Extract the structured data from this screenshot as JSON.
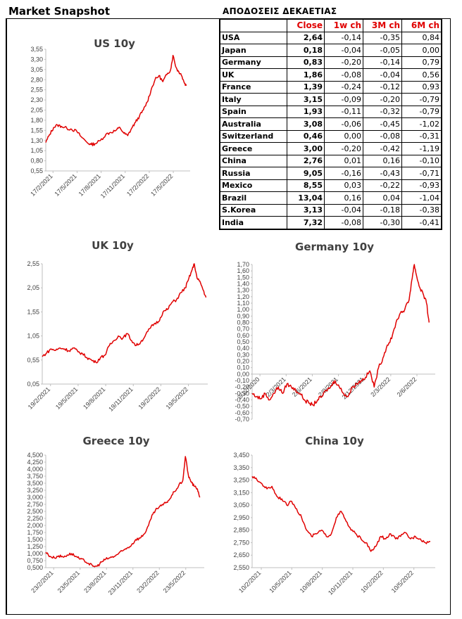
{
  "header": {
    "title": "Market Snapshot"
  },
  "table": {
    "title": "ΑΠΟΔΟΣΕΙΣ ΔΕΚΑΕΤΙΑΣ",
    "columns": [
      "",
      "Close",
      "1w ch",
      "3M ch",
      "6M ch"
    ],
    "rows": [
      [
        "USA",
        "2,64",
        "-0,14",
        "-0,35",
        "0,84"
      ],
      [
        "Japan",
        "0,18",
        "-0,04",
        "-0,05",
        "0,00"
      ],
      [
        "Germany",
        "0,83",
        "-0,20",
        "-0,14",
        "0,79"
      ],
      [
        "UK",
        "1,86",
        "-0,08",
        "-0,04",
        "0,56"
      ],
      [
        "France",
        "1,39",
        "-0,24",
        "-0,12",
        "0,93"
      ],
      [
        "Italy",
        "3,15",
        "-0,09",
        "-0,20",
        "-0,79"
      ],
      [
        "Spain",
        "1,93",
        "-0,11",
        "-0,32",
        "-0,79"
      ],
      [
        "Australia",
        "3,08",
        "-0,06",
        "-0,45",
        "-1,02"
      ],
      [
        "Switzerland",
        "0,46",
        "0,00",
        "-0,08",
        "-0,31"
      ],
      [
        "Greece",
        "3,00",
        "-0,20",
        "-0,42",
        "-1,19"
      ],
      [
        "China",
        "2,76",
        "0,01",
        "0,16",
        "-0,10"
      ],
      [
        "Russia",
        "9,05",
        "-0,16",
        "-0,43",
        "-0,71"
      ],
      [
        "Mexico",
        "8,55",
        "0,03",
        "-0,22",
        "-0,93"
      ],
      [
        "Brazil",
        "13,04",
        "0,16",
        "0,04",
        "-1,04"
      ],
      [
        "S.Korea",
        "3,13",
        "-0,04",
        "-0,18",
        "-0,38"
      ],
      [
        "India",
        "7,32",
        "-0,08",
        "-0,30",
        "-0,41"
      ]
    ]
  },
  "colors": {
    "line": "#e00000",
    "header_red": "#e00000",
    "axis": "#404040"
  },
  "chart_data": [
    {
      "id": "us",
      "type": "line",
      "title": "US 10y",
      "yticks": [
        "0,55",
        "0,80",
        "1,05",
        "1,30",
        "1,55",
        "1,80",
        "2,05",
        "2,30",
        "2,55",
        "2,80",
        "3,05",
        "3,30",
        "3,55"
      ],
      "ylim": [
        0.55,
        3.55
      ],
      "xticks": [
        "17/2/2021",
        "17/5/2021",
        "17/8/2021",
        "17/11/2021",
        "17/2/2022",
        "17/5/2022"
      ],
      "xlim_months": [
        0,
        18.5
      ],
      "points": [
        [
          0,
          1.25
        ],
        [
          0.5,
          1.45
        ],
        [
          1,
          1.62
        ],
        [
          1.5,
          1.68
        ],
        [
          2,
          1.65
        ],
        [
          2.7,
          1.6
        ],
        [
          3.3,
          1.58
        ],
        [
          4,
          1.52
        ],
        [
          4.5,
          1.4
        ],
        [
          5.3,
          1.25
        ],
        [
          5.8,
          1.2
        ],
        [
          6.3,
          1.22
        ],
        [
          7,
          1.3
        ],
        [
          7.7,
          1.45
        ],
        [
          8.3,
          1.5
        ],
        [
          9,
          1.55
        ],
        [
          9.5,
          1.62
        ],
        [
          10,
          1.48
        ],
        [
          10.5,
          1.42
        ],
        [
          11,
          1.6
        ],
        [
          11.5,
          1.75
        ],
        [
          12,
          1.9
        ],
        [
          12.5,
          2.05
        ],
        [
          13,
          2.25
        ],
        [
          13.5,
          2.55
        ],
        [
          14,
          2.8
        ],
        [
          14.5,
          2.9
        ],
        [
          15,
          2.75
        ],
        [
          15.5,
          2.92
        ],
        [
          16,
          3.05
        ],
        [
          16.3,
          3.4
        ],
        [
          16.7,
          3.1
        ],
        [
          17,
          3.0
        ],
        [
          17.3,
          2.95
        ],
        [
          17.7,
          2.75
        ],
        [
          18,
          2.65
        ]
      ]
    },
    {
      "id": "uk",
      "type": "line",
      "title": "UK 10y",
      "yticks": [
        "0,05",
        "0,55",
        "1,05",
        "1,55",
        "2,05",
        "2,55"
      ],
      "ylim": [
        0.05,
        2.55
      ],
      "xticks": [
        "19/2/2021",
        "19/5/2021",
        "19/8/2021",
        "19/11/2021",
        "19/2/2022",
        "19/5/2022"
      ],
      "xlim_months": [
        0,
        18.5
      ],
      "points": [
        [
          0,
          0.62
        ],
        [
          0.5,
          0.7
        ],
        [
          1,
          0.78
        ],
        [
          1.5,
          0.75
        ],
        [
          2,
          0.8
        ],
        [
          2.5,
          0.78
        ],
        [
          3,
          0.74
        ],
        [
          3.5,
          0.8
        ],
        [
          4,
          0.72
        ],
        [
          4.5,
          0.68
        ],
        [
          5,
          0.6
        ],
        [
          5.5,
          0.55
        ],
        [
          6,
          0.5
        ],
        [
          6.5,
          0.6
        ],
        [
          7,
          0.65
        ],
        [
          7.5,
          0.85
        ],
        [
          8,
          0.95
        ],
        [
          8.5,
          1.05
        ],
        [
          9,
          1.0
        ],
        [
          9.5,
          1.1
        ],
        [
          10,
          0.95
        ],
        [
          10.5,
          0.85
        ],
        [
          11,
          0.92
        ],
        [
          11.5,
          1.05
        ],
        [
          12,
          1.2
        ],
        [
          12.5,
          1.3
        ],
        [
          13,
          1.35
        ],
        [
          13.5,
          1.55
        ],
        [
          14,
          1.6
        ],
        [
          14.5,
          1.75
        ],
        [
          15,
          1.8
        ],
        [
          15.5,
          1.95
        ],
        [
          16,
          2.05
        ],
        [
          16.3,
          2.2
        ],
        [
          16.7,
          2.4
        ],
        [
          17,
          2.55
        ],
        [
          17.3,
          2.25
        ],
        [
          17.7,
          2.15
        ],
        [
          18,
          2.0
        ],
        [
          18.3,
          1.85
        ]
      ]
    },
    {
      "id": "germany",
      "type": "line",
      "title": "Germany 10y",
      "yticks": [
        "-0,70",
        "-0,60",
        "-0,50",
        "-0,40",
        "-0,30",
        "-0,20",
        "-0,10",
        "0,00",
        "0,10",
        "0,20",
        "0,30",
        "0,40",
        "0,50",
        "0,60",
        "0,70",
        "0,80",
        "0,90",
        "1,00",
        "1,10",
        "1,20",
        "1,30",
        "1,40",
        "1,50",
        "1,60",
        "1,70"
      ],
      "ylim": [
        -0.7,
        1.7
      ],
      "xticks": [
        "2/12/2020",
        "2/3/2021",
        "2/6/2021",
        "2/9/2021",
        "2/12/2021",
        "2/3/2022",
        "2/6/2022"
      ],
      "xlim_months": [
        0,
        21
      ],
      "points": [
        [
          0,
          -0.3
        ],
        [
          0.5,
          -0.35
        ],
        [
          1,
          -0.38
        ],
        [
          1.5,
          -0.3
        ],
        [
          2,
          -0.4
        ],
        [
          2.5,
          -0.3
        ],
        [
          3,
          -0.2
        ],
        [
          3.5,
          -0.3
        ],
        [
          4,
          -0.15
        ],
        [
          4.5,
          -0.2
        ],
        [
          5,
          -0.25
        ],
        [
          5.5,
          -0.3
        ],
        [
          6,
          -0.4
        ],
        [
          6.5,
          -0.45
        ],
        [
          7,
          -0.48
        ],
        [
          7.5,
          -0.4
        ],
        [
          8,
          -0.35
        ],
        [
          8.5,
          -0.25
        ],
        [
          9,
          -0.2
        ],
        [
          9.5,
          -0.1
        ],
        [
          10,
          -0.2
        ],
        [
          10.5,
          -0.3
        ],
        [
          11,
          -0.35
        ],
        [
          11.5,
          -0.2
        ],
        [
          12,
          -0.15
        ],
        [
          12.5,
          -0.1
        ],
        [
          13,
          -0.05
        ],
        [
          13.5,
          0.05
        ],
        [
          14,
          -0.2
        ],
        [
          14.5,
          0.1
        ],
        [
          15,
          0.25
        ],
        [
          15.5,
          0.45
        ],
        [
          16,
          0.55
        ],
        [
          16.5,
          0.8
        ],
        [
          17,
          0.95
        ],
        [
          17.5,
          1.0
        ],
        [
          18,
          1.15
        ],
        [
          18.3,
          1.45
        ],
        [
          18.6,
          1.7
        ],
        [
          18.9,
          1.5
        ],
        [
          19.2,
          1.35
        ],
        [
          19.6,
          1.25
        ],
        [
          20,
          1.1
        ],
        [
          20.3,
          0.8
        ]
      ]
    },
    {
      "id": "greece",
      "type": "line",
      "title": "Greece 10y",
      "yticks": [
        "0,500",
        "0,750",
        "1,000",
        "1,250",
        "1,500",
        "1,750",
        "2,000",
        "2,250",
        "2,500",
        "2,750",
        "3,000",
        "3,250",
        "3,500",
        "3,750",
        "4,000",
        "4,250",
        "4,500"
      ],
      "ylim": [
        0.5,
        4.5
      ],
      "xticks": [
        "23/2/2021",
        "23/5/2021",
        "23/8/2021",
        "23/11/2021",
        "23/2/2022",
        "23/5/2022"
      ],
      "xlim_months": [
        0,
        18.5
      ],
      "points": [
        [
          0,
          1.05
        ],
        [
          0.5,
          0.9
        ],
        [
          1,
          0.85
        ],
        [
          1.5,
          0.92
        ],
        [
          2,
          0.88
        ],
        [
          2.5,
          0.95
        ],
        [
          3,
          1.0
        ],
        [
          3.5,
          0.9
        ],
        [
          4,
          0.8
        ],
        [
          4.5,
          0.75
        ],
        [
          5,
          0.65
        ],
        [
          5.5,
          0.55
        ],
        [
          6,
          0.55
        ],
        [
          6.5,
          0.7
        ],
        [
          7,
          0.8
        ],
        [
          7.5,
          0.85
        ],
        [
          8,
          0.9
        ],
        [
          8.5,
          1.0
        ],
        [
          9,
          1.1
        ],
        [
          9.5,
          1.2
        ],
        [
          10,
          1.3
        ],
        [
          10.5,
          1.5
        ],
        [
          11,
          1.55
        ],
        [
          11.5,
          1.7
        ],
        [
          12,
          2.0
        ],
        [
          12.5,
          2.4
        ],
        [
          13,
          2.6
        ],
        [
          13.5,
          2.7
        ],
        [
          14,
          2.8
        ],
        [
          14.5,
          2.95
        ],
        [
          15,
          3.2
        ],
        [
          15.5,
          3.4
        ],
        [
          16,
          3.6
        ],
        [
          16.3,
          4.45
        ],
        [
          16.7,
          3.7
        ],
        [
          17,
          3.55
        ],
        [
          17.3,
          3.4
        ],
        [
          17.7,
          3.3
        ],
        [
          18,
          3.0
        ]
      ]
    },
    {
      "id": "china",
      "type": "line",
      "title": "China 10y",
      "yticks": [
        "2,550",
        "2,650",
        "2,750",
        "2,850",
        "2,950",
        "3,050",
        "3,150",
        "3,250",
        "3,350",
        "3,450"
      ],
      "ylim": [
        2.55,
        3.45
      ],
      "xticks": [
        "10/2/2021",
        "10/5/2021",
        "10/8/2021",
        "10/11/2021",
        "10/2/2022",
        "10/5/2022"
      ],
      "xlim_months": [
        0,
        18.5
      ],
      "points": [
        [
          0,
          3.28
        ],
        [
          0.5,
          3.25
        ],
        [
          1,
          3.22
        ],
        [
          1.5,
          3.18
        ],
        [
          2,
          3.2
        ],
        [
          2.5,
          3.12
        ],
        [
          3,
          3.1
        ],
        [
          3.5,
          3.05
        ],
        [
          4,
          3.08
        ],
        [
          4.5,
          3.02
        ],
        [
          5,
          2.95
        ],
        [
          5.5,
          2.85
        ],
        [
          6,
          2.8
        ],
        [
          6.5,
          2.82
        ],
        [
          7,
          2.85
        ],
        [
          7.5,
          2.8
        ],
        [
          8,
          2.82
        ],
        [
          8.5,
          2.95
        ],
        [
          9,
          3.0
        ],
        [
          9.5,
          2.92
        ],
        [
          10,
          2.85
        ],
        [
          10.5,
          2.82
        ],
        [
          11,
          2.78
        ],
        [
          11.5,
          2.75
        ],
        [
          12,
          2.68
        ],
        [
          12.5,
          2.72
        ],
        [
          13,
          2.8
        ],
        [
          13.5,
          2.78
        ],
        [
          14,
          2.82
        ],
        [
          14.5,
          2.78
        ],
        [
          15,
          2.8
        ],
        [
          15.5,
          2.83
        ],
        [
          16,
          2.78
        ],
        [
          16.5,
          2.8
        ],
        [
          17,
          2.78
        ],
        [
          17.5,
          2.75
        ],
        [
          18,
          2.76
        ]
      ]
    }
  ]
}
